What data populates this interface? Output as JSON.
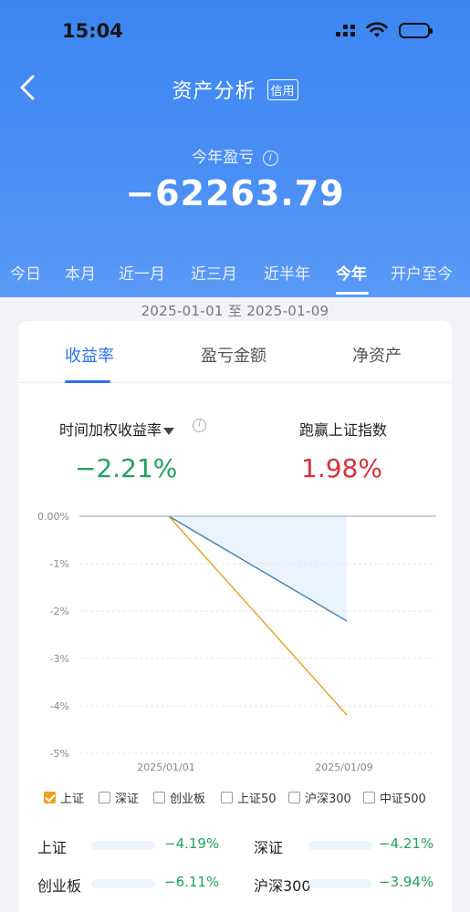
{
  "status_bar": {
    "time": "15:04"
  },
  "nav": {
    "title": "资产分析",
    "tag": "信用"
  },
  "summary": {
    "label": "今年盈亏",
    "value": "−62263.79"
  },
  "periods": [
    "今日",
    "本月",
    "近一月",
    "近三月",
    "近半年",
    "今年",
    "开户至今"
  ],
  "active_period": "今年",
  "date_range": "2025-01-01 至 2025-01-09",
  "tabs": [
    "收益率",
    "盈亏金额",
    "净资产"
  ],
  "active_tab": "收益率",
  "metrics": {
    "twr_label": "时间加权收益率",
    "twr_value": "−2.21%",
    "beat_label": "跑赢上证指数",
    "beat_value": "1.98%"
  },
  "colors": {
    "header_blue": "#3d86f2",
    "series_portfolio": "#3f7fb8",
    "series_index": "#e8a020",
    "positive": "#d9303a",
    "negative": "#1fa35c"
  },
  "chart_data": {
    "type": "line",
    "x": [
      "2025/01/01",
      "2025/01/09"
    ],
    "y_ticks": [
      "0.00%",
      "-1%",
      "-2%",
      "-3%",
      "-4%",
      "-5%"
    ],
    "ylim": [
      -5,
      0
    ],
    "grid": true,
    "series": [
      {
        "values": [
          0,
          -2.21
        ],
        "color": "#3f7fb8"
      },
      {
        "name": "上证",
        "values": [
          0,
          -4.19
        ],
        "color": "#e8a020"
      }
    ]
  },
  "legend": [
    {
      "label": "上证",
      "checked": true
    },
    {
      "label": "深证",
      "checked": false
    },
    {
      "label": "创业板",
      "checked": false
    },
    {
      "label": "上证50",
      "checked": false
    },
    {
      "label": "沪深300",
      "checked": false
    },
    {
      "label": "中证500",
      "checked": false
    }
  ],
  "indices": [
    {
      "name": "上证",
      "value": "−4.19%",
      "fill": 0.42
    },
    {
      "name": "深证",
      "value": "−4.21%",
      "fill": 0.42
    },
    {
      "name": "创业板",
      "value": "−6.11%",
      "fill": 0.6
    },
    {
      "name": "沪深300",
      "value": "−3.94%",
      "fill": 0.39
    }
  ]
}
